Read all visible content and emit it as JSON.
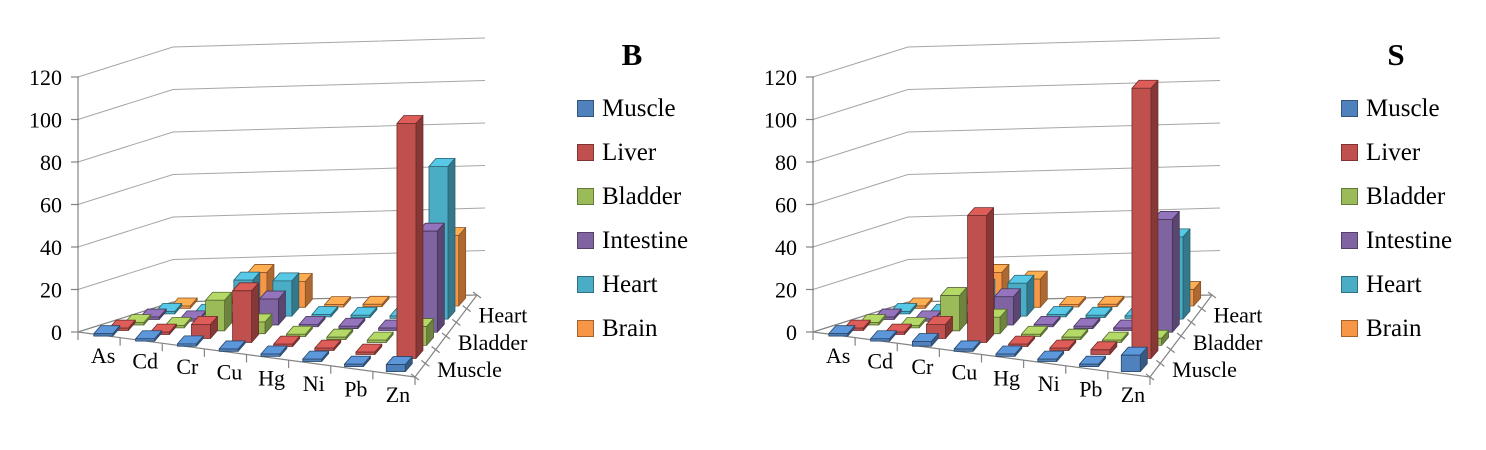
{
  "figure": {
    "background": "#FFFFFF"
  },
  "chart_data": [
    {
      "type": "bar",
      "variant": "3d-column",
      "title": "B",
      "categories": [
        "As",
        "Cd",
        "Cr",
        "Cu",
        "Hg",
        "Ni",
        "Pb",
        "Zn"
      ],
      "y_axis": {
        "min": 0,
        "max": 120,
        "step": 20,
        "tick_labels": [
          "0",
          "20",
          "40",
          "60",
          "80",
          "100",
          "120"
        ]
      },
      "depth_axis_labels": [
        "Muscle",
        "Bladder",
        "Heart"
      ],
      "legend_position": "right",
      "grid": true,
      "series": [
        {
          "name": "Muscle",
          "color": "#4F81BD",
          "values": [
            1,
            1,
            1,
            1,
            1,
            1,
            1,
            3
          ]
        },
        {
          "name": "Liver",
          "color": "#C0504D",
          "values": [
            1,
            1,
            6,
            22,
            1,
            1,
            1,
            100
          ]
        },
        {
          "name": "Bladder",
          "color": "#9BBB59",
          "values": [
            1,
            1,
            13,
            5,
            1,
            1,
            1,
            8
          ]
        },
        {
          "name": "Intestine",
          "color": "#8064A2",
          "values": [
            1,
            1,
            1,
            11,
            1,
            1,
            1,
            43
          ]
        },
        {
          "name": "Heart",
          "color": "#4BACC6",
          "values": [
            1,
            1,
            15,
            15,
            1,
            1,
            1,
            65
          ]
        },
        {
          "name": "Brain",
          "color": "#F79646",
          "values": [
            1,
            1,
            15,
            11,
            1,
            1,
            1,
            30
          ]
        }
      ]
    },
    {
      "type": "bar",
      "variant": "3d-column",
      "title": "S",
      "categories": [
        "As",
        "Cd",
        "Cr",
        "Cu",
        "Hg",
        "Ni",
        "Pb",
        "Zn"
      ],
      "y_axis": {
        "min": 0,
        "max": 120,
        "step": 20,
        "tick_labels": [
          "0",
          "20",
          "40",
          "60",
          "80",
          "100",
          "120"
        ]
      },
      "depth_axis_labels": [
        "Muscle",
        "Bladder",
        "Heart"
      ],
      "legend_position": "right",
      "grid": true,
      "series": [
        {
          "name": "Muscle",
          "color": "#4F81BD",
          "values": [
            1,
            1,
            2,
            1,
            1,
            1,
            1,
            7
          ]
        },
        {
          "name": "Liver",
          "color": "#C0504D",
          "values": [
            1,
            1,
            6,
            54,
            1,
            1,
            2,
            115
          ]
        },
        {
          "name": "Bladder",
          "color": "#9BBB59",
          "values": [
            1,
            1,
            15,
            7,
            1,
            1,
            1,
            3
          ]
        },
        {
          "name": "Intestine",
          "color": "#8064A2",
          "values": [
            1,
            1,
            1,
            12,
            1,
            1,
            1,
            48
          ]
        },
        {
          "name": "Heart",
          "color": "#4BACC6",
          "values": [
            1,
            1,
            12,
            14,
            1,
            1,
            1,
            35
          ]
        },
        {
          "name": "Brain",
          "color": "#F79646",
          "values": [
            1,
            1,
            15,
            12,
            1,
            1,
            1,
            7
          ]
        }
      ]
    }
  ]
}
